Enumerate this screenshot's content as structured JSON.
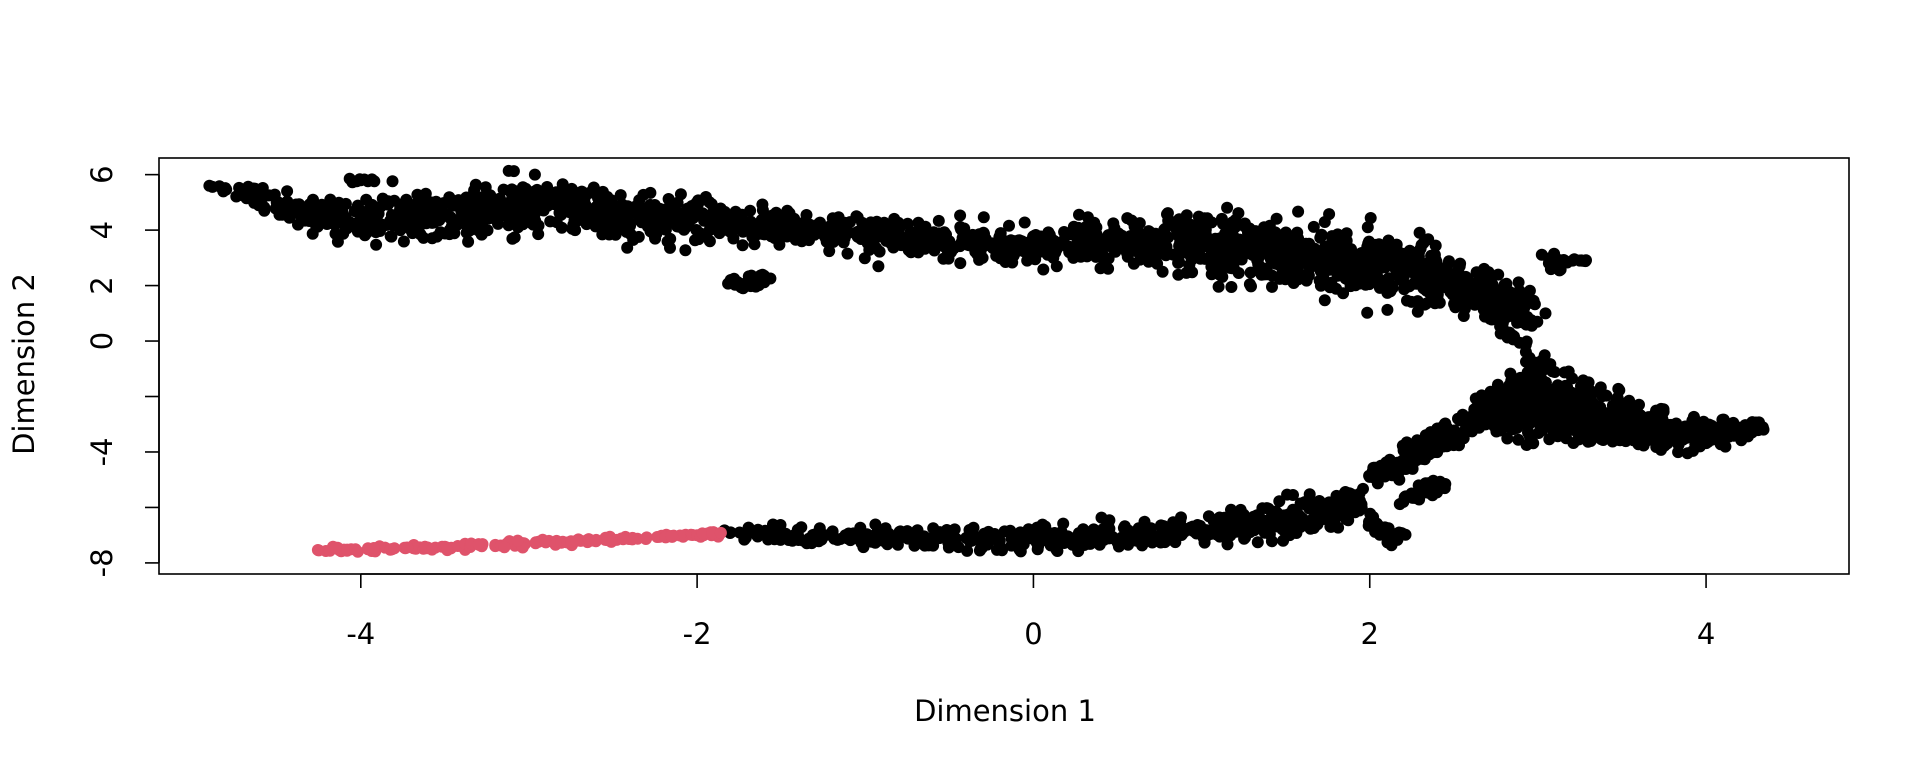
{
  "chart_data": {
    "type": "scatter",
    "title": "",
    "xlabel": "Dimension 1",
    "ylabel": "Dimension 2",
    "xlim": [
      -5.2,
      4.85
    ],
    "ylim": [
      -8.4,
      6.6
    ],
    "grid": false,
    "legend": "none",
    "xticks": [
      -4,
      -2,
      0,
      2,
      4
    ],
    "xtick_labels": [
      "-4",
      "-2",
      "0",
      "2",
      "4"
    ],
    "yticks": [
      -8,
      -6,
      -4,
      -2,
      0,
      2,
      4,
      6
    ],
    "ytick_labels": [
      "-8",
      "",
      "-4",
      "",
      "0",
      "2",
      "4",
      "6"
    ],
    "series": [
      {
        "color": "#000000",
        "x": [
          -4.9,
          -4.7,
          -4.5,
          -4.3,
          -4.1,
          -3.9,
          -3.7,
          -3.5,
          -3.3,
          -3.1,
          -2.9,
          -2.7,
          -2.5,
          -2.3,
          -2.1,
          -1.9,
          -1.7,
          -1.5,
          -1.3,
          -1.1,
          -0.9,
          -0.7,
          -0.5,
          -0.3,
          -0.1,
          0.1,
          0.3,
          0.5,
          0.7,
          0.9,
          1.1,
          1.3,
          1.5,
          1.7,
          1.9,
          2.1,
          2.3,
          2.5,
          2.7,
          2.9,
          3.1,
          -1.8,
          -1.7,
          -1.6,
          -4.0,
          3.25,
          2.75,
          2.85,
          2.95,
          3.05,
          2.9,
          2.7,
          2.6,
          2.7,
          2.8,
          2.9,
          3.0,
          3.1,
          3.2,
          3.3,
          3.4,
          3.5,
          3.6,
          3.7,
          3.8,
          3.9,
          4.0,
          4.1,
          4.2,
          4.3,
          2.0,
          2.1,
          2.2,
          2.3,
          2.4,
          2.5,
          2.2,
          2.4,
          2.0,
          2.15,
          -1.8,
          -1.6,
          -1.4,
          -1.2,
          -1.0,
          -0.8,
          -0.6,
          -0.4,
          -0.2,
          0.0,
          0.2,
          0.4,
          0.6,
          0.8,
          1.0,
          1.2,
          1.4,
          1.6,
          1.8,
          1.9
        ],
        "y": [
          5.6,
          5.4,
          5.0,
          4.6,
          4.4,
          4.3,
          4.4,
          4.6,
          4.7,
          4.8,
          4.9,
          4.8,
          4.6,
          4.5,
          4.4,
          4.3,
          4.2,
          4.1,
          4.0,
          3.9,
          3.8,
          3.7,
          3.6,
          3.5,
          3.4,
          3.4,
          3.5,
          3.5,
          3.6,
          3.5,
          3.4,
          3.4,
          3.2,
          3.1,
          2.9,
          2.7,
          2.4,
          2.1,
          1.6,
          1.2,
          2.9,
          2.2,
          2.0,
          2.3,
          5.8,
          2.9,
          0.8,
          0.2,
          -0.6,
          -1.0,
          -1.4,
          -2.0,
          -2.9,
          -2.8,
          -2.6,
          -2.4,
          -2.3,
          -2.3,
          -2.5,
          -2.6,
          -2.8,
          -3.0,
          -3.1,
          -3.2,
          -3.3,
          -3.3,
          -3.4,
          -3.3,
          -3.2,
          -3.1,
          -4.9,
          -4.6,
          -4.3,
          -3.9,
          -3.6,
          -3.4,
          -5.8,
          -5.2,
          -6.6,
          -7.0,
          -6.9,
          -6.9,
          -7.0,
          -7.0,
          -7.1,
          -7.1,
          -7.1,
          -7.1,
          -7.2,
          -7.1,
          -7.1,
          -7.1,
          -7.0,
          -7.0,
          -6.8,
          -6.7,
          -6.6,
          -6.4,
          -6.2,
          -5.8
        ],
        "spread": [
          0.15,
          0.4,
          0.6,
          0.7,
          0.75,
          0.8,
          0.85,
          0.9,
          0.95,
          1.0,
          1.0,
          1.0,
          0.95,
          0.9,
          0.85,
          0.8,
          0.75,
          0.7,
          0.7,
          0.7,
          0.65,
          0.65,
          0.65,
          0.65,
          0.7,
          0.75,
          0.8,
          0.9,
          1.0,
          1.1,
          1.2,
          1.3,
          1.3,
          1.3,
          1.3,
          1.3,
          1.2,
          1.1,
          1.0,
          0.8,
          0.35,
          0.2,
          0.2,
          0.2,
          0.1,
          0.05,
          0.15,
          0.15,
          0.15,
          0.2,
          0.3,
          0.4,
          0.35,
          0.5,
          0.8,
          1.1,
          1.2,
          1.2,
          1.1,
          1.0,
          0.95,
          0.9,
          0.8,
          0.7,
          0.65,
          0.6,
          0.5,
          0.45,
          0.35,
          0.2,
          0.3,
          0.4,
          0.45,
          0.5,
          0.5,
          0.5,
          0.3,
          0.3,
          0.35,
          0.3,
          0.25,
          0.3,
          0.35,
          0.35,
          0.4,
          0.4,
          0.4,
          0.45,
          0.45,
          0.5,
          0.5,
          0.55,
          0.55,
          0.6,
          0.65,
          0.7,
          0.75,
          0.8,
          0.8,
          0.6
        ]
      },
      {
        "color": "#DF536B",
        "x": [
          -4.25,
          -4.1,
          -3.95,
          -3.8,
          -3.65,
          -3.5,
          -3.35,
          -3.2,
          -3.05,
          -2.9,
          -2.75,
          -2.6,
          -2.45,
          -2.3,
          -2.15,
          -2.0,
          -1.9
        ],
        "y": [
          -7.55,
          -7.52,
          -7.5,
          -7.47,
          -7.44,
          -7.42,
          -7.38,
          -7.35,
          -7.3,
          -7.26,
          -7.22,
          -7.17,
          -7.12,
          -7.08,
          -7.04,
          -7.0,
          -6.96
        ],
        "spread": [
          0.12,
          0.13,
          0.14,
          0.14,
          0.14,
          0.13,
          0.12,
          0.1,
          0.12,
          0.13,
          0.13,
          0.13,
          0.12,
          0.12,
          0.11,
          0.11,
          0.1
        ]
      }
    ]
  }
}
